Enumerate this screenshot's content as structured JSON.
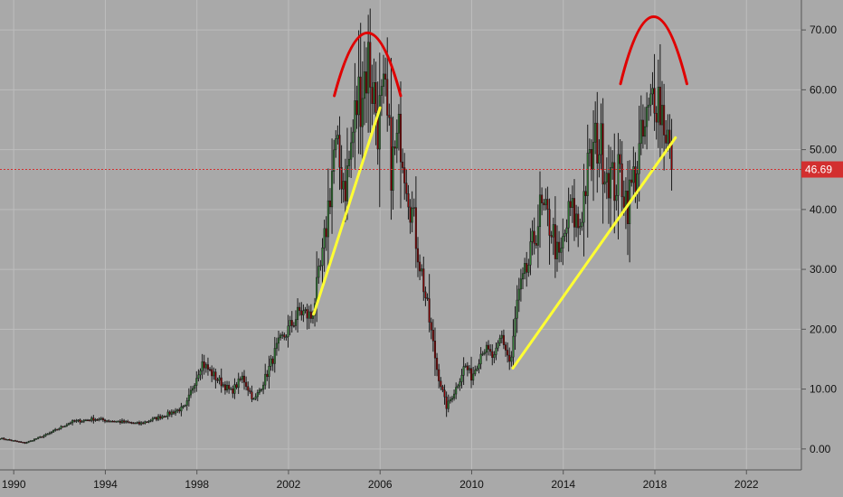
{
  "chart_data": {
    "type": "candlestick",
    "title": "",
    "xlabel": "",
    "ylabel": "",
    "x_ticks": [
      1990,
      1994,
      1998,
      2002,
      2006,
      2010,
      2014,
      2018,
      2022
    ],
    "y_ticks": [
      0,
      10,
      20,
      30,
      40,
      50,
      60,
      70
    ],
    "y_tick_labels": [
      "0.00",
      "10.00",
      "20.00",
      "30.00",
      "40.00",
      "50.00",
      "60.00",
      "70.00"
    ],
    "xlim": [
      1989.4,
      2024.4
    ],
    "ylim": [
      -3.5,
      75
    ],
    "grid": true,
    "current_price": 46.69,
    "current_price_label": "46.69",
    "colors": {
      "up": "#2e7d32",
      "down": "#8b0000",
      "price_line": "#d32f2f",
      "trend": "#ffff33",
      "arc": "#e00000",
      "background": "#a9a9a9"
    },
    "close_series": [
      [
        1989.4,
        1.8
      ],
      [
        1990.5,
        1.0
      ],
      [
        1991.5,
        2.5
      ],
      [
        1992.5,
        4.5
      ],
      [
        1993.5,
        5.0
      ],
      [
        1994.5,
        4.6
      ],
      [
        1995.5,
        4.2
      ],
      [
        1996.5,
        5.5
      ],
      [
        1997.5,
        7.0
      ],
      [
        1998.2,
        14.5
      ],
      [
        1998.8,
        12.0
      ],
      [
        1999.5,
        9.5
      ],
      [
        2000.0,
        12.0
      ],
      [
        2000.5,
        8.0
      ],
      [
        2001.0,
        12.0
      ],
      [
        2001.5,
        17.0
      ],
      [
        2002.0,
        20.0
      ],
      [
        2002.5,
        23.0
      ],
      [
        2003.0,
        22.0
      ],
      [
        2003.5,
        32.0
      ],
      [
        2004.0,
        50.0
      ],
      [
        2004.5,
        44.0
      ],
      [
        2005.0,
        58.0
      ],
      [
        2005.5,
        65.0
      ],
      [
        2005.9,
        55.0
      ],
      [
        2006.2,
        58.0
      ],
      [
        2006.5,
        47.0
      ],
      [
        2006.9,
        53.0
      ],
      [
        2007.3,
        42.0
      ],
      [
        2007.7,
        32.0
      ],
      [
        2008.0,
        25.0
      ],
      [
        2008.5,
        13.0
      ],
      [
        2008.9,
        7.0
      ],
      [
        2009.3,
        10.0
      ],
      [
        2009.7,
        14.0
      ],
      [
        2010.0,
        12.0
      ],
      [
        2010.5,
        17.0
      ],
      [
        2011.0,
        15.0
      ],
      [
        2011.3,
        19.0
      ],
      [
        2011.7,
        14.0
      ],
      [
        2012.0,
        25.0
      ],
      [
        2012.5,
        31.0
      ],
      [
        2013.0,
        40.0
      ],
      [
        2013.5,
        37.0
      ],
      [
        2013.8,
        31.0
      ],
      [
        2014.3,
        40.0
      ],
      [
        2014.7,
        37.0
      ],
      [
        2015.0,
        45.0
      ],
      [
        2015.5,
        52.0
      ],
      [
        2015.9,
        47.0
      ],
      [
        2016.2,
        44.0
      ],
      [
        2016.5,
        46.0
      ],
      [
        2016.8,
        41.0
      ],
      [
        2017.2,
        47.0
      ],
      [
        2017.5,
        52.0
      ],
      [
        2017.8,
        56.0
      ],
      [
        2018.0,
        62.0
      ],
      [
        2018.2,
        58.0
      ],
      [
        2018.5,
        54.0
      ],
      [
        2018.7,
        48.0
      ],
      [
        2018.8,
        46.69
      ]
    ],
    "annotations": {
      "trendlines": [
        {
          "from": [
            2003.1,
            22.5
          ],
          "to": [
            2006.0,
            57.0
          ]
        },
        {
          "from": [
            2011.8,
            13.5
          ],
          "to": [
            2018.9,
            52.0
          ]
        }
      ],
      "arcs": [
        {
          "x_start": 2004.0,
          "x_end": 2006.9,
          "peak_x": 2005.45,
          "base_y": 59.0,
          "peak_y": 69.5
        },
        {
          "x_start": 2016.5,
          "x_end": 2019.4,
          "peak_x": 2017.95,
          "base_y": 61.0,
          "peak_y": 72.2
        }
      ]
    }
  }
}
